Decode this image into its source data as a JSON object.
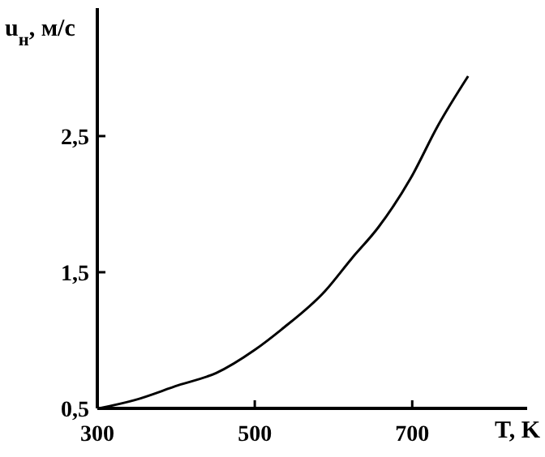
{
  "chart_data": {
    "type": "line",
    "xlabel": "T, K",
    "ylabel": "u$_{н}$, м/с",
    "x": [
      302,
      347,
      403,
      451,
      500,
      534,
      589,
      623,
      657,
      698,
      733,
      771
    ],
    "series": [
      {
        "color": "#000000",
        "values": [
          0.5,
          0.56,
          0.67,
          0.76,
          0.93,
          1.08,
          1.36,
          1.6,
          1.83,
          2.19,
          2.58,
          2.94
        ]
      }
    ],
    "xlim": [
      300,
      846
    ],
    "ylim": [
      0.5,
      3.44
    ],
    "xticks": [
      300,
      500,
      700
    ],
    "yticks": [
      {
        "value": 0.5,
        "label": "0,5"
      },
      {
        "value": 1.5,
        "label": "1,5"
      },
      {
        "value": 2.5,
        "label": "2,5"
      }
    ],
    "grid": false,
    "marker": "none",
    "line_style": "solid"
  }
}
